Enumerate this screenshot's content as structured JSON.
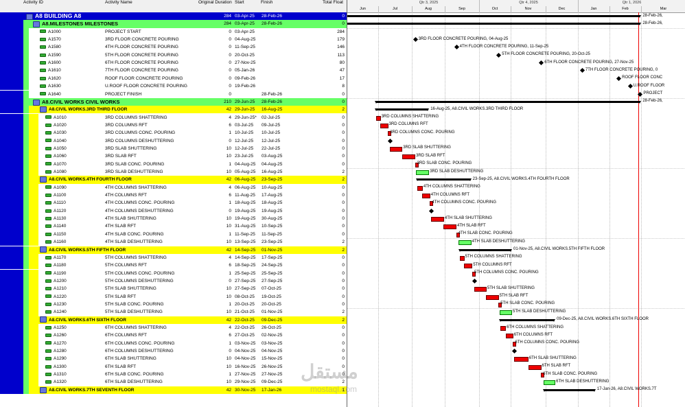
{
  "columns": {
    "activity_id": "Activity ID",
    "activity_name": "Activity Name",
    "orig_duration": "Original Duration",
    "start": "Start",
    "finish": "Finish",
    "total_float": "Total Float"
  },
  "timescale": {
    "quarters": [
      "Qtr 3, 2025",
      "Qtr 4, 2025",
      "Qtr 1, 2026"
    ],
    "months": [
      "Jun",
      "Jul",
      "Aug",
      "Sep",
      "Oct",
      "Nov",
      "Dec",
      "Jan",
      "Feb",
      "Mar"
    ]
  },
  "colors": {
    "wbs1": "#0000cc",
    "wbs2": "#66ff66",
    "wbs3": "#ffff00",
    "critical_bar": "#ee0000",
    "noncritical_bar": "#66ff66",
    "data_date": "#ee0000"
  },
  "rows": [
    {
      "type": "wbs1",
      "id": "",
      "name": "A8  BUILDING A8",
      "dur": "284",
      "start": "03-Apr-25",
      "finish": "28-Feb-26",
      "tf": "0"
    },
    {
      "type": "wbs2",
      "id": "",
      "name": "A8.MILESTONES  MILESTONES",
      "dur": "284",
      "start": "03-Apr-25",
      "finish": "28-Feb-26",
      "tf": "0"
    },
    {
      "type": "act",
      "id": "A1000",
      "name": "PROJECT START",
      "dur": "0",
      "start": "03-Apr-25",
      "finish": "",
      "tf": "284"
    },
    {
      "type": "act",
      "id": "A1570",
      "name": "3RD FLOOR CONCRETE POURING",
      "dur": "0",
      "start": "04-Aug-25",
      "finish": "",
      "tf": "179"
    },
    {
      "type": "act",
      "id": "A1580",
      "name": "4TH FLOOR CONCRETE POURING",
      "dur": "0",
      "start": "11-Sep-25",
      "finish": "",
      "tf": "146"
    },
    {
      "type": "act",
      "id": "A1590",
      "name": "5TH FLOOR CONCRETE POURING",
      "dur": "0",
      "start": "20-Oct-25",
      "finish": "",
      "tf": "113"
    },
    {
      "type": "act",
      "id": "A1600",
      "name": "6TH FLOOR CONCRETE POURING",
      "dur": "0",
      "start": "27-Nov-25",
      "finish": "",
      "tf": "80"
    },
    {
      "type": "act",
      "id": "A1610",
      "name": "7TH FLOOR CONCRETE POURING",
      "dur": "0",
      "start": "05-Jan-26",
      "finish": "",
      "tf": "47"
    },
    {
      "type": "act",
      "id": "A1620",
      "name": "ROOF FLOOR CONCRETE POURING",
      "dur": "0",
      "start": "09-Feb-26",
      "finish": "",
      "tf": "17"
    },
    {
      "type": "act",
      "id": "A1630",
      "name": "U.ROOF FLOOR CONCRETE POURING",
      "dur": "0",
      "start": "19-Feb-26",
      "finish": "",
      "tf": "8"
    },
    {
      "type": "act",
      "id": "A1640",
      "name": "PROJECT FINISH",
      "dur": "0",
      "start": "",
      "finish": "28-Feb-26",
      "tf": "0"
    },
    {
      "type": "wbs2",
      "id": "",
      "name": "A8.CIVIL WORKS  CIVIL WORKS",
      "dur": "210",
      "start": "29-Jun-25",
      "finish": "28-Feb-26",
      "tf": "0"
    },
    {
      "type": "wbs3",
      "id": "",
      "name": "A8.CIVIL WORKS.3RD  THIRD FLOOR",
      "dur": "42",
      "start": "29-Jun-25",
      "finish": "16-Aug-25",
      "tf": "2"
    },
    {
      "type": "act",
      "id": "A1010",
      "name": "3RD COLUMNS SHATTERING",
      "dur": "4",
      "start": "29-Jun-25*",
      "finish": "02-Jul-25",
      "tf": "0"
    },
    {
      "type": "act",
      "id": "A1020",
      "name": "3RD COLUMNS RFT",
      "dur": "6",
      "start": "03-Jul-25",
      "finish": "09-Jul-25",
      "tf": "0"
    },
    {
      "type": "act",
      "id": "A1030",
      "name": "3RD COLUMNS CONC. POURING",
      "dur": "1",
      "start": "10-Jul-25",
      "finish": "10-Jul-25",
      "tf": "0"
    },
    {
      "type": "act",
      "id": "A1040",
      "name": "3RD COLUMNS DESHUTTERING",
      "dur": "0",
      "start": "12-Jul-25",
      "finish": "12-Jul-25",
      "tf": "0"
    },
    {
      "type": "act",
      "id": "A1050",
      "name": "3RD SLAB SHUTTERING",
      "dur": "10",
      "start": "12-Jul-25",
      "finish": "22-Jul-25",
      "tf": "0"
    },
    {
      "type": "act",
      "id": "A1060",
      "name": "3RD SLAB RFT",
      "dur": "10",
      "start": "23-Jul-25",
      "finish": "03-Aug-25",
      "tf": "0"
    },
    {
      "type": "act",
      "id": "A1070",
      "name": "3RD SLAB CONC. POURING",
      "dur": "1",
      "start": "04-Aug-25",
      "finish": "04-Aug-25",
      "tf": "0"
    },
    {
      "type": "act",
      "id": "A1080",
      "name": "3RD SLAB DESHUTTERING",
      "dur": "10",
      "start": "05-Aug-25",
      "finish": "16-Aug-25",
      "tf": "2"
    },
    {
      "type": "wbs3",
      "id": "",
      "name": "A8.CIVIL WORKS.4TH  FOURTH FLOOR",
      "dur": "42",
      "start": "06-Aug-25",
      "finish": "23-Sep-25",
      "tf": "2"
    },
    {
      "type": "act",
      "id": "A1090",
      "name": "4TH COLUMNS SHATTERING",
      "dur": "4",
      "start": "06-Aug-25",
      "finish": "10-Aug-25",
      "tf": "0"
    },
    {
      "type": "act",
      "id": "A1100",
      "name": "4TH COLUMNS RFT",
      "dur": "6",
      "start": "11-Aug-25",
      "finish": "17-Aug-25",
      "tf": "0"
    },
    {
      "type": "act",
      "id": "A1110",
      "name": "4TH COLUMNS CONC. POURING",
      "dur": "1",
      "start": "18-Aug-25",
      "finish": "18-Aug-25",
      "tf": "0"
    },
    {
      "type": "act",
      "id": "A1120",
      "name": "4TH COLUMNS DESHUTTERING",
      "dur": "0",
      "start": "19-Aug-25",
      "finish": "19-Aug-25",
      "tf": "0"
    },
    {
      "type": "act",
      "id": "A1130",
      "name": "4TH SLAB SHUTTERING",
      "dur": "10",
      "start": "19-Aug-25",
      "finish": "30-Aug-25",
      "tf": "0"
    },
    {
      "type": "act",
      "id": "A1140",
      "name": "4TH SLAB RFT",
      "dur": "10",
      "start": "31-Aug-25",
      "finish": "10-Sep-25",
      "tf": "0"
    },
    {
      "type": "act",
      "id": "A1150",
      "name": "4TH SLAB CONC. POURING",
      "dur": "1",
      "start": "11-Sep-25",
      "finish": "11-Sep-25",
      "tf": "0"
    },
    {
      "type": "act",
      "id": "A1160",
      "name": "4TH SLAB DESHUTTERING",
      "dur": "10",
      "start": "13-Sep-25",
      "finish": "23-Sep-25",
      "tf": "2"
    },
    {
      "type": "wbs3",
      "id": "",
      "name": "A8.CIVIL WORKS.5TH  FIFTH FLOOR",
      "dur": "42",
      "start": "14-Sep-25",
      "finish": "01-Nov-25",
      "tf": "2"
    },
    {
      "type": "act",
      "id": "A1170",
      "name": "5TH COLUMNS SHATTERING",
      "dur": "4",
      "start": "14-Sep-25",
      "finish": "17-Sep-25",
      "tf": "0"
    },
    {
      "type": "act",
      "id": "A1180",
      "name": "5TH COLUMNS RFT",
      "dur": "6",
      "start": "18-Sep-25",
      "finish": "24-Sep-25",
      "tf": "0"
    },
    {
      "type": "act",
      "id": "A1190",
      "name": "5TH COLUMNS CONC. POURING",
      "dur": "1",
      "start": "25-Sep-25",
      "finish": "25-Sep-25",
      "tf": "0"
    },
    {
      "type": "act",
      "id": "A1200",
      "name": "5TH COLUMNS DESHUTTERING",
      "dur": "0",
      "start": "27-Sep-25",
      "finish": "27-Sep-25",
      "tf": "0"
    },
    {
      "type": "act",
      "id": "A1210",
      "name": "5TH SLAB SHUTTERING",
      "dur": "10",
      "start": "27-Sep-25",
      "finish": "07-Oct-25",
      "tf": "0"
    },
    {
      "type": "act",
      "id": "A1220",
      "name": "5TH SLAB RFT",
      "dur": "10",
      "start": "08-Oct-25",
      "finish": "19-Oct-25",
      "tf": "0"
    },
    {
      "type": "act",
      "id": "A1230",
      "name": "5TH SLAB CONC. POURING",
      "dur": "1",
      "start": "20-Oct-25",
      "finish": "20-Oct-25",
      "tf": "0"
    },
    {
      "type": "act",
      "id": "A1240",
      "name": "5TH SLAB DESHUTTERING",
      "dur": "10",
      "start": "21-Oct-25",
      "finish": "01-Nov-25",
      "tf": "2"
    },
    {
      "type": "wbs3",
      "id": "",
      "name": "A8.CIVIL WORKS.6TH  SIXTH FLOOR",
      "dur": "42",
      "start": "22-Oct-25",
      "finish": "09-Dec-25",
      "tf": "2"
    },
    {
      "type": "act",
      "id": "A1250",
      "name": "6TH COLUMNS SHATTERING",
      "dur": "4",
      "start": "22-Oct-25",
      "finish": "26-Oct-25",
      "tf": "0"
    },
    {
      "type": "act",
      "id": "A1260",
      "name": "6TH COLUMNS RFT",
      "dur": "6",
      "start": "27-Oct-25",
      "finish": "02-Nov-25",
      "tf": "0"
    },
    {
      "type": "act",
      "id": "A1270",
      "name": "6TH COLUMNS CONC. POURING",
      "dur": "1",
      "start": "03-Nov-25",
      "finish": "03-Nov-25",
      "tf": "0"
    },
    {
      "type": "act",
      "id": "A1280",
      "name": "6TH COLUMNS DESHUTTERING",
      "dur": "0",
      "start": "04-Nov-25",
      "finish": "04-Nov-25",
      "tf": "0"
    },
    {
      "type": "act",
      "id": "A1290",
      "name": "6TH SLAB SHUTTERING",
      "dur": "10",
      "start": "04-Nov-25",
      "finish": "15-Nov-25",
      "tf": "0"
    },
    {
      "type": "act",
      "id": "A1300",
      "name": "6TH SLAB RFT",
      "dur": "10",
      "start": "16-Nov-25",
      "finish": "26-Nov-25",
      "tf": "0"
    },
    {
      "type": "act",
      "id": "A1310",
      "name": "6TH SLAB CONC. POURING",
      "dur": "1",
      "start": "27-Nov-25",
      "finish": "27-Nov-25",
      "tf": "0"
    },
    {
      "type": "act",
      "id": "A1320",
      "name": "6TH SLAB DESHUTTERING",
      "dur": "10",
      "start": "29-Nov-25",
      "finish": "09-Dec-25",
      "tf": "2"
    },
    {
      "type": "wbs3",
      "id": "",
      "name": "A8.CIVIL WORKS.7TH  SEVENTH FLOOR",
      "dur": "42",
      "start": "30-Nov-25",
      "finish": "17-Jan-26",
      "tf": "1"
    }
  ],
  "gantt_labels": [
    "28-Feb-26,",
    "28-Feb-26,",
    "3RD FLOOR CONCRETE POURING, 04-Aug-25",
    "4TH FLOOR CONCRETE POURING, 11-Sep-25",
    "5TH FLOOR CONCRETE POURING, 20-Oct-25",
    "6TH FLOOR CONCRETE POURING, 27-Nov-25",
    "7TH FLOOR CONCRETE POURING, 0",
    "ROOF FLOOR CONC",
    "U.ROOF FLOOR",
    "PROJECT",
    "28-Feb-26,",
    "16-Aug-25, A8.CIVIL WORKS.3RD  THIRD FLOOR",
    "23-Sep-25, A8.CIVIL WORKS.4TH  FOURTH FLOOR",
    "01-Nov-25, A8.CIVIL WORKS.5TH  FIFTH FLOOR",
    "09-Dec-25, A8.CIVIL WORKS.6TH  SIXTH FLOOR",
    "17-Jan-26, A8.CIVIL WORKS.7T"
  ],
  "watermark": {
    "arabic": "مستقل",
    "latin": "mostaql.com"
  }
}
